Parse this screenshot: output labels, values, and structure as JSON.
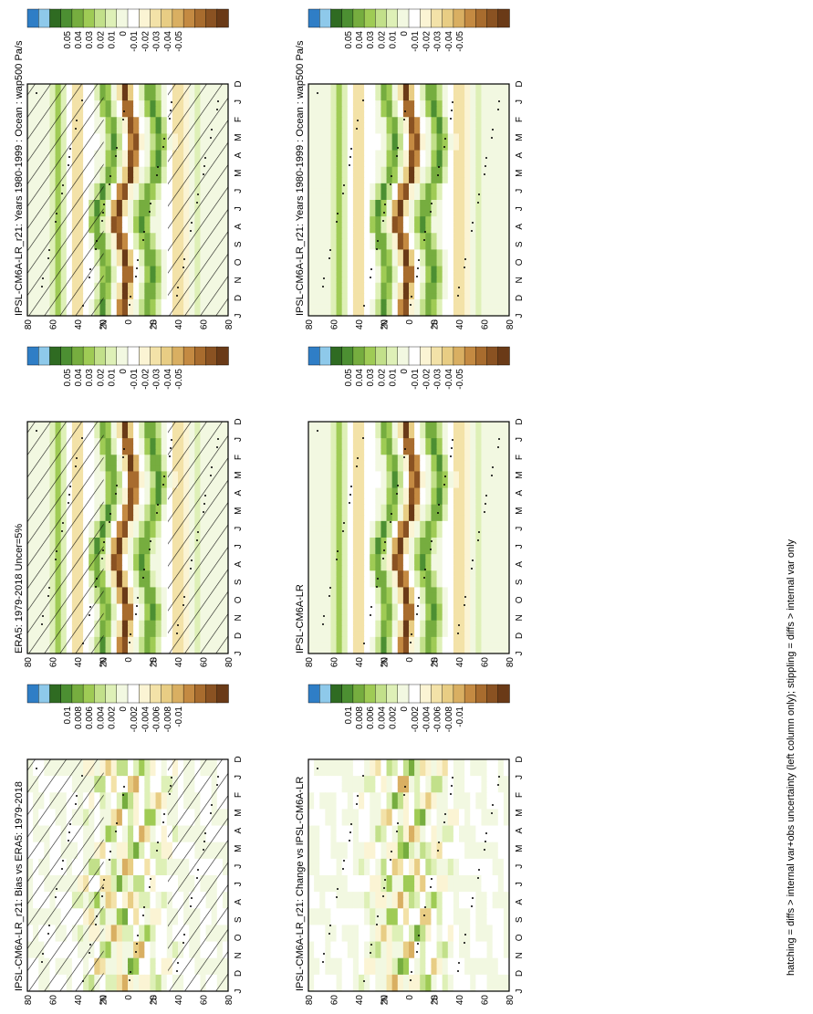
{
  "figure": {
    "footer_note": "hatching = diffs > internal var+obs uncertainty (left column only); stippling = diffs > internal var only",
    "month_labels": [
      "D",
      "J",
      "F",
      "M",
      "A",
      "M",
      "J",
      "J",
      "A",
      "S",
      "O",
      "N",
      "D",
      "J"
    ],
    "lat_labels": [
      "80",
      "60",
      "40",
      "20",
      "0",
      "20",
      "40",
      "60",
      "80"
    ],
    "lat_hemi_labels": [
      "°N",
      "°S"
    ]
  },
  "colorbars": {
    "levels_main": [
      "0.05",
      "0.04",
      "0.03",
      "0.02",
      "0.01",
      "0",
      "-0.01",
      "-0.02",
      "-0.03",
      "-0.04",
      "-0.05"
    ],
    "levels_diff": [
      "0.01",
      "0.008",
      "0.006",
      "0.004",
      "0.002",
      "0",
      "-0.002",
      "-0.004",
      "-0.006",
      "-0.008",
      "-0.01"
    ],
    "colors": [
      "#2f7ec6",
      "#8ec9ea",
      "#2f6b22",
      "#4c8f32",
      "#76ad3f",
      "#9fcb55",
      "#c2e08a",
      "#def0b7",
      "#f2f8e1",
      "#ffffff",
      "#fbf4d4",
      "#f3e2a8",
      "#e8cd84",
      "#d9af62",
      "#c48a42",
      "#a86c2e",
      "#8a5222",
      "#6a3a17"
    ]
  },
  "chart_data": [
    {
      "type": "heatmap",
      "panel": "left-top",
      "title": "IPSL-CM6A-LR_r21: Years 1980-1999 : Ocean : wap500 Pa/s",
      "x": [
        "D",
        "J",
        "F",
        "M",
        "A",
        "M",
        "J",
        "J",
        "A",
        "S",
        "O",
        "N",
        "D",
        "J"
      ],
      "y": [
        80,
        60,
        40,
        20,
        0,
        -20,
        -40,
        -60,
        -80
      ],
      "zrange": [
        -0.05,
        0.05
      ],
      "rows_equator_shift": [
        2,
        0,
        -4,
        -6,
        -4,
        -2,
        4,
        8,
        10,
        6,
        2,
        0,
        2,
        4
      ],
      "hatching": true,
      "stippling": true
    },
    {
      "type": "heatmap",
      "panel": "right-top",
      "title": "IPSL-CM6A-LR_r21: Years 1980-1999 : Ocean : wap500 Pa/s",
      "x": [
        "D",
        "J",
        "F",
        "M",
        "A",
        "M",
        "J",
        "J",
        "A",
        "S",
        "O",
        "N",
        "D",
        "J"
      ],
      "y": [
        80,
        60,
        40,
        20,
        0,
        -20,
        -40,
        -60,
        -80
      ],
      "zrange": [
        -0.05,
        0.05
      ],
      "rows_equator_shift": [
        2,
        0,
        -4,
        -6,
        -4,
        -2,
        4,
        8,
        10,
        6,
        2,
        0,
        2,
        4
      ],
      "hatching": false,
      "stippling": true
    },
    {
      "type": "heatmap",
      "panel": "left-middle",
      "title": "ERA5: 1979-2018 Uncer=5%",
      "x": [
        "D",
        "J",
        "F",
        "M",
        "A",
        "M",
        "J",
        "J",
        "A",
        "S",
        "O",
        "N",
        "D",
        "J"
      ],
      "y": [
        80,
        60,
        40,
        20,
        0,
        -20,
        -40,
        -60,
        -80
      ],
      "zrange": [
        -0.05,
        0.05
      ],
      "rows_equator_shift": [
        2,
        0,
        -3,
        -5,
        -4,
        -1,
        4,
        8,
        10,
        7,
        3,
        0,
        2,
        4
      ],
      "hatching": true,
      "stippling": true
    },
    {
      "type": "heatmap",
      "panel": "right-middle",
      "title": "IPSL-CM6A-LR",
      "x": [
        "D",
        "J",
        "F",
        "M",
        "A",
        "M",
        "J",
        "J",
        "A",
        "S",
        "O",
        "N",
        "D",
        "J"
      ],
      "y": [
        80,
        60,
        40,
        20,
        0,
        -20,
        -40,
        -60,
        -80
      ],
      "zrange": [
        -0.05,
        0.05
      ],
      "rows_equator_shift": [
        2,
        0,
        -4,
        -6,
        -4,
        -2,
        4,
        8,
        10,
        6,
        2,
        0,
        2,
        4
      ],
      "hatching": false,
      "stippling": true
    },
    {
      "type": "heatmap",
      "panel": "left-bottom",
      "title": "IPSL-CM6A-LR_r21: Bias vs ERA5: 1979-2018",
      "x": [
        "D",
        "J",
        "F",
        "M",
        "A",
        "M",
        "J",
        "J",
        "A",
        "S",
        "O",
        "N",
        "D",
        "J"
      ],
      "y": [
        80,
        60,
        40,
        20,
        0,
        -20,
        -40,
        -60,
        -80
      ],
      "zrange": [
        -0.01,
        0.01
      ],
      "rows_equator_shift": [
        2,
        0,
        -4,
        -6,
        -4,
        -2,
        4,
        8,
        10,
        6,
        2,
        0,
        2,
        4
      ],
      "hatching": true,
      "stippling": true
    },
    {
      "type": "heatmap",
      "panel": "right-bottom",
      "title": "IPSL-CM6A-LR_r21: Change vs IPSL-CM6A-LR",
      "x": [
        "D",
        "J",
        "F",
        "M",
        "A",
        "M",
        "J",
        "J",
        "A",
        "S",
        "O",
        "N",
        "D",
        "J"
      ],
      "y": [
        80,
        60,
        40,
        20,
        0,
        -20,
        -40,
        -60,
        -80
      ],
      "zrange": [
        -0.01,
        0.01
      ],
      "rows_equator_shift": [
        0,
        0,
        0,
        0,
        0,
        0,
        0,
        0,
        0,
        0,
        0,
        0,
        0,
        0
      ],
      "hatching": false,
      "stippling": true
    }
  ]
}
